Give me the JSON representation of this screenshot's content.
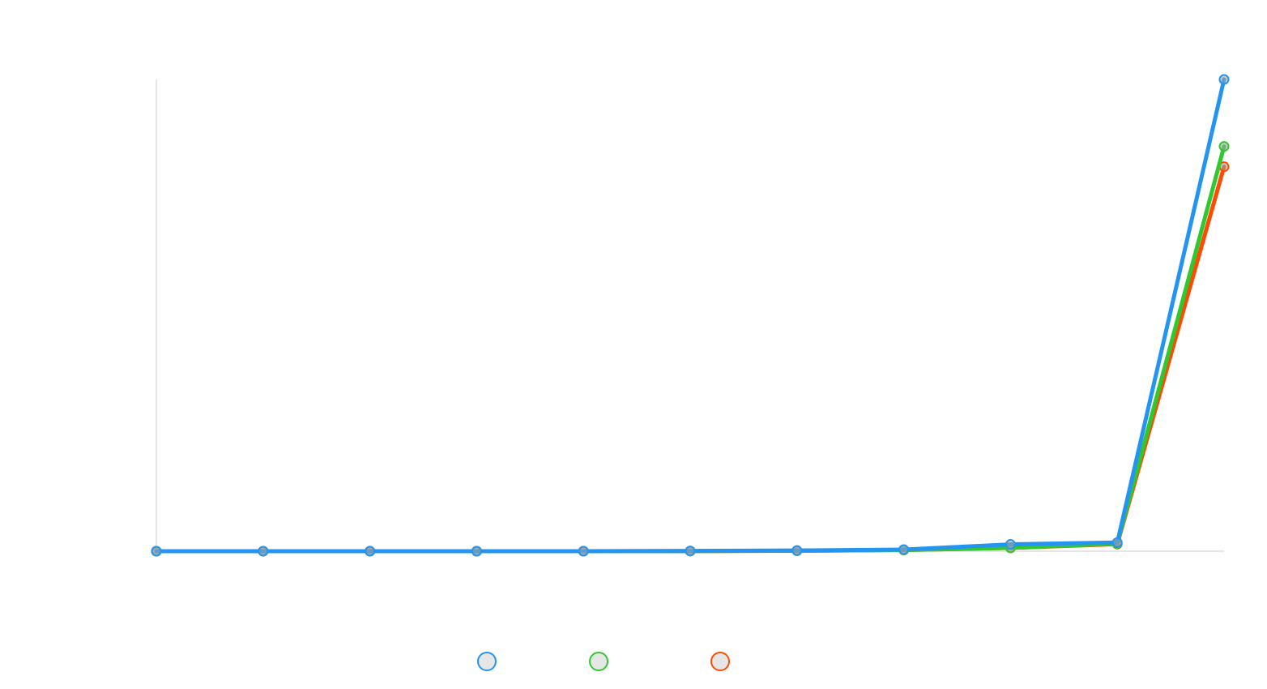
{
  "chart_data": {
    "type": "line",
    "title": "",
    "xlabel": "",
    "ylabel": "",
    "x": [
      0,
      1,
      2,
      3,
      4,
      5,
      6,
      7,
      8,
      9,
      10
    ],
    "ylim": [
      0,
      100
    ],
    "grid": false,
    "legend_position": "bottom-center",
    "series": [
      {
        "color": "#2594f0",
        "values": [
          0,
          0,
          0,
          0,
          0,
          0.05,
          0.15,
          0.35,
          1.45,
          1.85,
          100
        ]
      },
      {
        "color": "#2fc82f",
        "values": [
          0,
          0,
          0,
          0,
          0,
          0.03,
          0.1,
          0.25,
          0.7,
          1.6,
          85.8
        ]
      },
      {
        "color": "#ff4b00",
        "values": [
          0,
          0,
          0,
          0,
          0,
          0.03,
          0.1,
          0.25,
          0.7,
          1.5,
          81.5
        ]
      }
    ]
  }
}
